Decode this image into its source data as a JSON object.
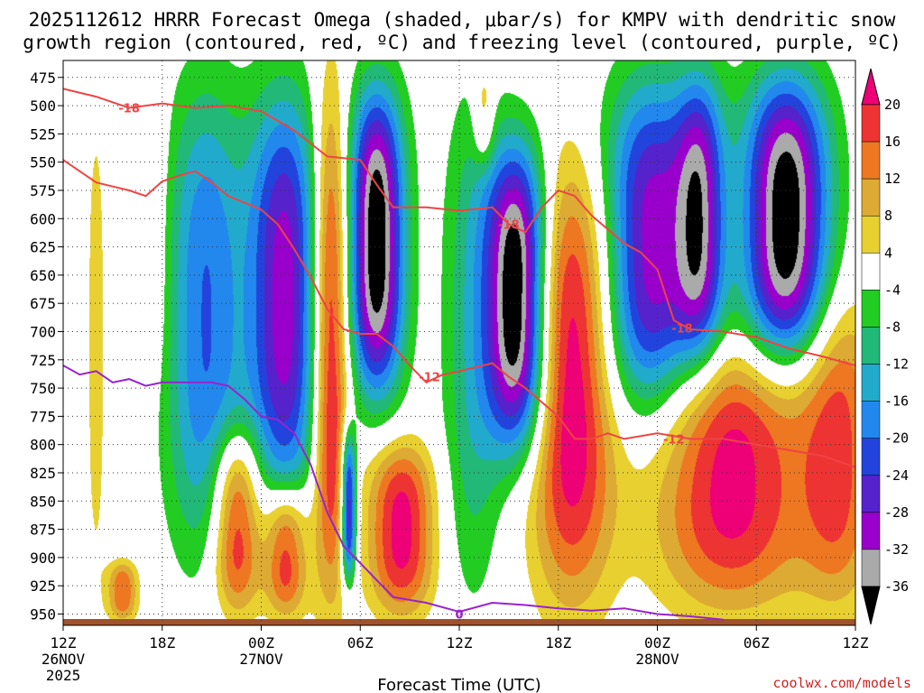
{
  "chart_data": {
    "type": "heatmap",
    "title_line1": "2025112612 HRRR Forecast Omega (shaded, μbar/s) for KMPV with dendritic snow",
    "title_line2": "growth region (contoured, red, ºC) and freezing level (contoured, purple, ºC)",
    "xlabel": "Forecast Time (UTC)",
    "credit": "coolwx.com/models",
    "x_range_hours": [
      0,
      48
    ],
    "y_range_hpa": [
      460,
      960
    ],
    "y_ticks": [
      475,
      500,
      525,
      550,
      575,
      600,
      625,
      650,
      675,
      700,
      725,
      750,
      775,
      800,
      825,
      850,
      875,
      900,
      925,
      950
    ],
    "x_ticks": [
      {
        "hour": 0,
        "label": "12Z",
        "date": "26NOV",
        "year": "2025"
      },
      {
        "hour": 6,
        "label": "18Z",
        "date": "",
        "year": ""
      },
      {
        "hour": 12,
        "label": "00Z",
        "date": "27NOV",
        "year": ""
      },
      {
        "hour": 18,
        "label": "06Z",
        "date": "",
        "year": ""
      },
      {
        "hour": 24,
        "label": "12Z",
        "date": "",
        "year": ""
      },
      {
        "hour": 30,
        "label": "18Z",
        "date": "",
        "year": ""
      },
      {
        "hour": 36,
        "label": "00Z",
        "date": "28NOV",
        "year": ""
      },
      {
        "hour": 42,
        "label": "06Z",
        "date": "",
        "year": ""
      },
      {
        "hour": 48,
        "label": "12Z",
        "date": "",
        "year": ""
      }
    ],
    "colorbar": {
      "labels": [
        "20",
        "16",
        "12",
        "8",
        "4",
        "-4",
        "-8",
        "-12",
        "-16",
        "-20",
        "-24",
        "-28",
        "-32",
        "-36"
      ],
      "colors": [
        "#ee0077",
        "#ee3333",
        "#ee7722",
        "#ddaa33",
        "#e8d030",
        "#ffffff",
        "#22cc22",
        "#22b877",
        "#22aacc",
        "#2288ee",
        "#2244dd",
        "#5522cc",
        "#9900cc",
        "#aaaaaa",
        "#000000"
      ]
    },
    "omega_features": [
      {
        "hour": 2.0,
        "p_top": 460,
        "p_bot": 960,
        "half_width": 0.7,
        "peak": 6
      },
      {
        "hour": 5.5,
        "p_top": 460,
        "p_bot": 760,
        "half_width": 1.0,
        "peak": 5
      },
      {
        "hour": 3.6,
        "p_top": 900,
        "p_bot": 960,
        "half_width": 1.0,
        "peak": 16
      },
      {
        "hour": 8.6,
        "p_top": 460,
        "p_bot": 920,
        "half_width": 2.6,
        "peak": -20
      },
      {
        "hour": 13.4,
        "p_top": 470,
        "p_bot": 870,
        "half_width": 2.4,
        "peak": -30
      },
      {
        "hour": 10.5,
        "p_top": 780,
        "p_bot": 960,
        "half_width": 1.6,
        "peak": 22
      },
      {
        "hour": 13.5,
        "p_top": 830,
        "p_bot": 960,
        "half_width": 1.4,
        "peak": 20
      },
      {
        "hour": 16.2,
        "p_top": 460,
        "p_bot": 960,
        "half_width": 1.2,
        "peak": 24
      },
      {
        "hour": 17.3,
        "p_top": 780,
        "p_bot": 930,
        "half_width": 0.5,
        "peak": -32
      },
      {
        "hour": 19.0,
        "p_top": 470,
        "p_bot": 770,
        "half_width": 1.8,
        "peak": -40
      },
      {
        "hour": 20.5,
        "p_top": 790,
        "p_bot": 960,
        "half_width": 2.2,
        "peak": 22
      },
      {
        "hour": 24.8,
        "p_top": 460,
        "p_bot": 960,
        "half_width": 2.0,
        "peak": -11
      },
      {
        "hour": 25.5,
        "p_top": 460,
        "p_bot": 560,
        "half_width": 0.7,
        "peak": 10
      },
      {
        "hour": 27.5,
        "p_top": 520,
        "p_bot": 820,
        "half_width": 2.0,
        "peak": -42
      },
      {
        "hour": 30.8,
        "p_top": 530,
        "p_bot": 960,
        "half_width": 2.8,
        "peak": 24
      },
      {
        "hour": 35.6,
        "p_top": 460,
        "p_bot": 790,
        "half_width": 3.2,
        "peak": -30
      },
      {
        "hour": 38.6,
        "p_top": 460,
        "p_bot": 740,
        "half_width": 1.6,
        "peak": -26
      },
      {
        "hour": 43.8,
        "p_top": 460,
        "p_bot": 740,
        "half_width": 2.8,
        "peak": -40
      },
      {
        "hour": 40.5,
        "p_top": 700,
        "p_bot": 960,
        "half_width": 5.0,
        "peak": 22
      },
      {
        "hour": 47.0,
        "p_top": 650,
        "p_bot": 960,
        "half_width": 2.6,
        "peak": 16
      }
    ],
    "contours": [
      {
        "name": "dgz-upper-18",
        "label": "-18",
        "color": "#ee4444",
        "label_points": [
          {
            "hour": 4.0,
            "p": 502
          },
          {
            "hour": 27.0,
            "p": 605
          },
          {
            "hour": 37.5,
            "p": 697
          }
        ],
        "points": [
          [
            0,
            485
          ],
          [
            2,
            492
          ],
          [
            4,
            502
          ],
          [
            6,
            498
          ],
          [
            8,
            502
          ],
          [
            10,
            500
          ],
          [
            12,
            505
          ],
          [
            14,
            522
          ],
          [
            16,
            545
          ],
          [
            18,
            548
          ],
          [
            19,
            570
          ],
          [
            20,
            590
          ],
          [
            22,
            590
          ],
          [
            24,
            593
          ],
          [
            26,
            590
          ],
          [
            27,
            605
          ],
          [
            28,
            612
          ],
          [
            29,
            590
          ],
          [
            30,
            575
          ],
          [
            31,
            580
          ],
          [
            32,
            597
          ],
          [
            34,
            622
          ],
          [
            35,
            630
          ],
          [
            36,
            645
          ],
          [
            37,
            690
          ],
          [
            38,
            698
          ],
          [
            40,
            700
          ],
          [
            42,
            705
          ],
          [
            44,
            715
          ],
          [
            46,
            722
          ],
          [
            48,
            730
          ]
        ]
      },
      {
        "name": "dgz-lower-12",
        "label": "-12",
        "color": "#ee4444",
        "label_points": [
          {
            "hour": 22.2,
            "p": 740
          },
          {
            "hour": 37.0,
            "p": 795
          }
        ],
        "points": [
          [
            0,
            548
          ],
          [
            2,
            568
          ],
          [
            4,
            575
          ],
          [
            5,
            580
          ],
          [
            6,
            567
          ],
          [
            7,
            562
          ],
          [
            8,
            558
          ],
          [
            9,
            568
          ],
          [
            10,
            580
          ],
          [
            12,
            592
          ],
          [
            13,
            605
          ],
          [
            14,
            627
          ],
          [
            15,
            652
          ],
          [
            16,
            680
          ],
          [
            17,
            698
          ],
          [
            18,
            702
          ],
          [
            19,
            702
          ],
          [
            20,
            713
          ],
          [
            21,
            730
          ],
          [
            22,
            745
          ],
          [
            23,
            738
          ],
          [
            24,
            735
          ],
          [
            26,
            728
          ],
          [
            27,
            740
          ],
          [
            28,
            750
          ],
          [
            30,
            775
          ],
          [
            31,
            795
          ],
          [
            32,
            795
          ],
          [
            33,
            790
          ],
          [
            34,
            795
          ],
          [
            36,
            790
          ],
          [
            38,
            795
          ],
          [
            40,
            795
          ],
          [
            42,
            800
          ],
          [
            44,
            805
          ],
          [
            46,
            810
          ],
          [
            48,
            820
          ]
        ]
      },
      {
        "name": "freezing-level-0",
        "label": "0",
        "color": "#9922cc",
        "label_points": [
          {
            "hour": 24.0,
            "p": 950
          }
        ],
        "points": [
          [
            0,
            730
          ],
          [
            1,
            738
          ],
          [
            2,
            735
          ],
          [
            3,
            745
          ],
          [
            4,
            742
          ],
          [
            5,
            748
          ],
          [
            6,
            745
          ],
          [
            8,
            745
          ],
          [
            9,
            745
          ],
          [
            10,
            748
          ],
          [
            11,
            760
          ],
          [
            12,
            775
          ],
          [
            13,
            778
          ],
          [
            14,
            790
          ],
          [
            15,
            818
          ],
          [
            16,
            860
          ],
          [
            17,
            890
          ],
          [
            18,
            905
          ],
          [
            19,
            920
          ],
          [
            20,
            935
          ],
          [
            22,
            940
          ],
          [
            24,
            948
          ],
          [
            26,
            940
          ],
          [
            28,
            942
          ],
          [
            30,
            945
          ],
          [
            32,
            947
          ],
          [
            34,
            945
          ],
          [
            36,
            950
          ],
          [
            38,
            952
          ],
          [
            40,
            955
          ]
        ]
      }
    ]
  }
}
